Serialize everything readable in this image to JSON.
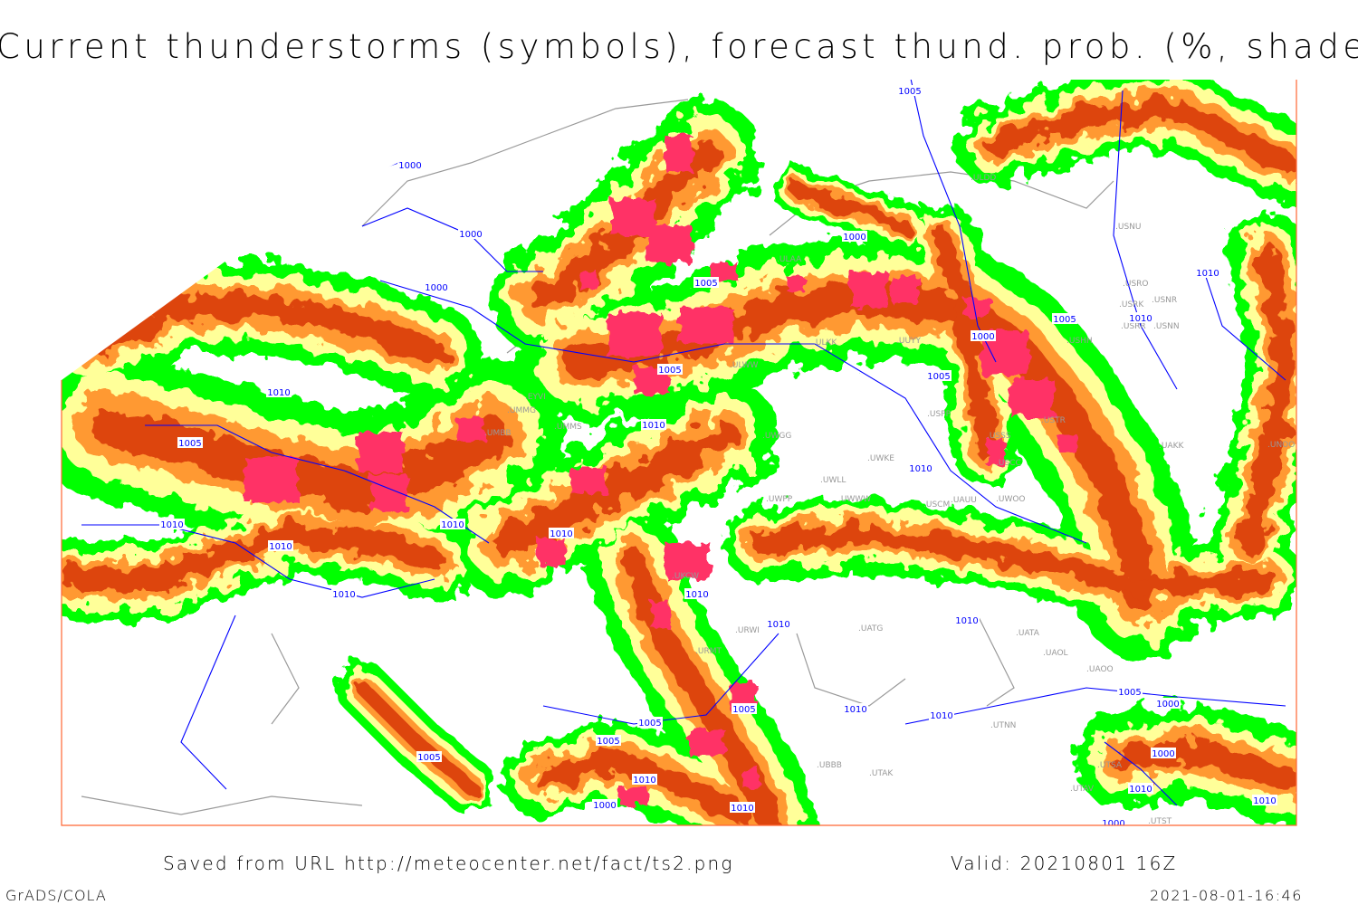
{
  "title": "Current thunderstorms (symbols), forecast thund. prob. (%, shaded)",
  "footer": {
    "source": "Saved from URL http://meteocenter.net/fact/ts2.png",
    "valid": "Valid: 20210801 16Z",
    "software": "GrADS/COLA",
    "generated": "2021-08-01-16:46"
  },
  "colors": {
    "prob_low": "#00ff00",
    "prob_mid": "#ffff99",
    "prob_high": "#ff9933",
    "prob_very_high": "#dd4411",
    "thunderstorm_symbol": "#ff3366",
    "isobar": "#0000ff",
    "coastline": "#999999",
    "frame": "#ff6633"
  },
  "isobar_labels": [
    "1005",
    "1000",
    "1000",
    "1000",
    "1005",
    "1010",
    "1005",
    "1005",
    "1010",
    "1000",
    "1005",
    "1000",
    "1010",
    "1005",
    "1010",
    "1010",
    "1010",
    "1010",
    "1010",
    "1010",
    "1010",
    "1010",
    "1010",
    "1010",
    "1005",
    "1000",
    "1010",
    "1010",
    "1005",
    "1005",
    "1000",
    "1005",
    "1010",
    "1000",
    "1010",
    "1010",
    "1010",
    "1005",
    "1000"
  ],
  "station_labels": [
    "ULDD",
    "ULAA",
    "UUYY",
    "ULKK",
    "ULWW",
    "USNU",
    "USRO",
    "USRK",
    "USNR",
    "USRR",
    "USNN",
    "USHH",
    "USPP",
    "USTR",
    "USSS",
    "USCC",
    "UWGG",
    "UWKE",
    "UWLL",
    "UWPP",
    "UWWW",
    "UWOO",
    "UATG",
    "UATA",
    "UAOL",
    "UAOO",
    "UTNN",
    "UTAK",
    "UTSA",
    "UTAV",
    "UTST",
    "UBBB",
    "URMT",
    "URWI",
    "UKCW",
    "UMMS",
    "UMBB",
    "UMMG",
    "EYVI",
    "UAKK",
    "UAUU",
    "UNOO",
    "USCM"
  ]
}
